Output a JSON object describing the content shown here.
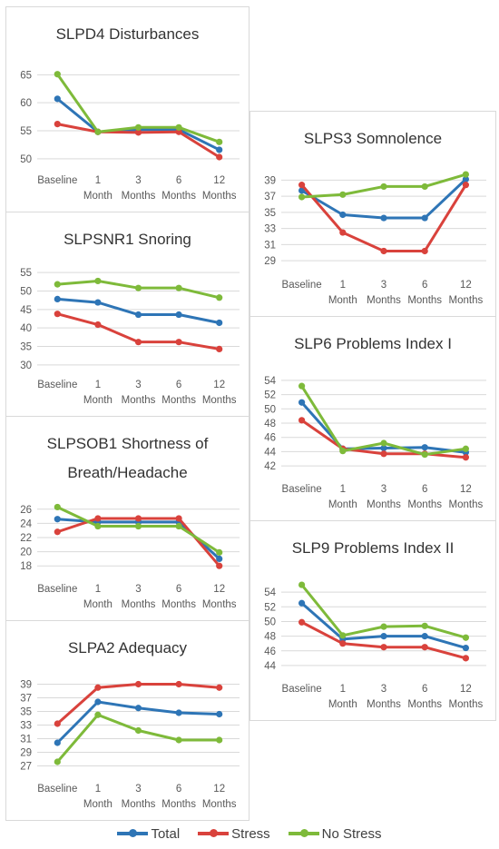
{
  "colors": {
    "Total": "#2E75B6",
    "Stress": "#D9423C",
    "No Stress": "#7EBA3A"
  },
  "legend": [
    "Total",
    "Stress",
    "No Stress"
  ],
  "chart_data": [
    {
      "type": "line",
      "title": [
        "SLPD4 Disturbances"
      ],
      "categories": [
        [
          "Baseline"
        ],
        [
          "1",
          "Month"
        ],
        [
          "3",
          "Months"
        ],
        [
          "6",
          "Months"
        ],
        [
          "12",
          "Months"
        ]
      ],
      "yticks": [
        50,
        55,
        60,
        65
      ],
      "ylim": [
        49,
        67
      ],
      "series": [
        {
          "name": "Total",
          "values": [
            60.7,
            54.8,
            55.2,
            55.2,
            51.6
          ]
        },
        {
          "name": "Stress",
          "values": [
            56.2,
            54.8,
            54.7,
            54.8,
            50.3
          ]
        },
        {
          "name": "No Stress",
          "values": [
            65.1,
            54.8,
            55.6,
            55.6,
            53.0
          ]
        }
      ]
    },
    {
      "type": "line",
      "title": [
        "SLPSNR1 Snoring"
      ],
      "categories": [
        [
          "Baseline"
        ],
        [
          "1",
          "Month"
        ],
        [
          "3",
          "Months"
        ],
        [
          "6",
          "Months"
        ],
        [
          "12",
          "Months"
        ]
      ],
      "yticks": [
        30,
        35,
        40,
        45,
        50,
        55
      ],
      "ylim": [
        29,
        56
      ],
      "series": [
        {
          "name": "Total",
          "values": [
            47.8,
            46.9,
            43.6,
            43.6,
            41.4
          ]
        },
        {
          "name": "Stress",
          "values": [
            43.8,
            40.9,
            36.2,
            36.2,
            34.3
          ]
        },
        {
          "name": "No Stress",
          "values": [
            51.8,
            52.7,
            50.8,
            50.8,
            48.2
          ]
        }
      ]
    },
    {
      "type": "line",
      "title": [
        "SLPSOB1 Shortness of",
        "Breath/Headache"
      ],
      "categories": [
        [
          "Baseline"
        ],
        [
          "1",
          "Month"
        ],
        [
          "3",
          "Months"
        ],
        [
          "6",
          "Months"
        ],
        [
          "12",
          "Months"
        ]
      ],
      "yticks": [
        18,
        20,
        22,
        24,
        26
      ],
      "ylim": [
        17,
        27
      ],
      "series": [
        {
          "name": "Total",
          "values": [
            24.6,
            24.2,
            24.2,
            24.2,
            19.0
          ]
        },
        {
          "name": "Stress",
          "values": [
            22.8,
            24.7,
            24.7,
            24.7,
            18.0
          ]
        },
        {
          "name": "No Stress",
          "values": [
            26.3,
            23.6,
            23.6,
            23.6,
            19.9
          ]
        }
      ]
    },
    {
      "type": "line",
      "title": [
        "SLPA2 Adequacy"
      ],
      "categories": [
        [
          "Baseline"
        ],
        [
          "1",
          "Month"
        ],
        [
          "3",
          "Months"
        ],
        [
          "6",
          "Months"
        ],
        [
          "12",
          "Months"
        ]
      ],
      "yticks": [
        27,
        29,
        31,
        33,
        35,
        37,
        39
      ],
      "ylim": [
        26,
        40
      ],
      "series": [
        {
          "name": "Total",
          "values": [
            30.4,
            36.4,
            35.5,
            34.8,
            34.6
          ]
        },
        {
          "name": "Stress",
          "values": [
            33.2,
            38.5,
            39.0,
            39.0,
            38.5
          ]
        },
        {
          "name": "No Stress",
          "values": [
            27.6,
            34.5,
            32.2,
            30.8,
            30.8
          ]
        }
      ]
    },
    {
      "type": "line",
      "title": [
        "SLPS3 Somnolence"
      ],
      "categories": [
        [
          "Baseline"
        ],
        [
          "1",
          "Month"
        ],
        [
          "3",
          "Months"
        ],
        [
          "6",
          "Months"
        ],
        [
          "12",
          "Months"
        ]
      ],
      "yticks": [
        29,
        31,
        33,
        35,
        37,
        39
      ],
      "ylim": [
        28,
        40.5
      ],
      "series": [
        {
          "name": "Total",
          "values": [
            37.7,
            34.7,
            34.3,
            34.3,
            39.1
          ]
        },
        {
          "name": "Stress",
          "values": [
            38.4,
            32.5,
            30.2,
            30.2,
            38.4
          ]
        },
        {
          "name": "No Stress",
          "values": [
            36.9,
            37.2,
            38.2,
            38.2,
            39.7
          ]
        }
      ]
    },
    {
      "type": "line",
      "title": [
        "SLP6 Problems Index I"
      ],
      "categories": [
        [
          "Baseline"
        ],
        [
          "1",
          "Month"
        ],
        [
          "3",
          "Months"
        ],
        [
          "6",
          "Months"
        ],
        [
          "12",
          "Months"
        ]
      ],
      "yticks": [
        42,
        44,
        46,
        48,
        50,
        52,
        54
      ],
      "ylim": [
        41,
        55
      ],
      "series": [
        {
          "name": "Total",
          "values": [
            50.9,
            44.4,
            44.5,
            44.6,
            43.9
          ]
        },
        {
          "name": "Stress",
          "values": [
            48.4,
            44.4,
            43.7,
            43.7,
            43.2
          ]
        },
        {
          "name": "No Stress",
          "values": [
            53.2,
            44.1,
            45.2,
            43.6,
            44.4
          ]
        }
      ]
    },
    {
      "type": "line",
      "title": [
        "SLP9 Problems Index II"
      ],
      "categories": [
        [
          "Baseline"
        ],
        [
          "1",
          "Month"
        ],
        [
          "3",
          "Months"
        ],
        [
          "6",
          "Months"
        ],
        [
          "12",
          "Months"
        ]
      ],
      "yticks": [
        44,
        46,
        48,
        50,
        52,
        54
      ],
      "ylim": [
        43,
        56
      ],
      "series": [
        {
          "name": "Total",
          "values": [
            52.5,
            47.6,
            48.0,
            48.0,
            46.4
          ]
        },
        {
          "name": "Stress",
          "values": [
            49.9,
            47.0,
            46.5,
            46.5,
            45.0
          ]
        },
        {
          "name": "No Stress",
          "values": [
            55.0,
            48.1,
            49.3,
            49.4,
            47.8
          ]
        }
      ]
    }
  ]
}
